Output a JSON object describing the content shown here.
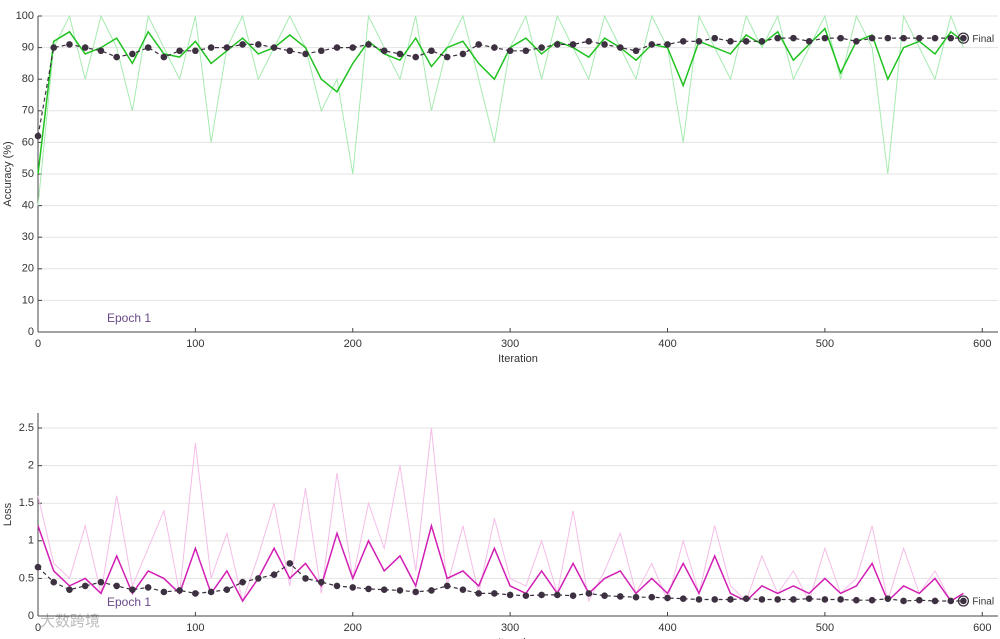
{
  "chart_data": [
    {
      "type": "line",
      "ylabel": "Accuracy (%)",
      "xlabel": "Iteration",
      "annotation": "Epoch 1",
      "final_label": "Final",
      "xlim": [
        0,
        610
      ],
      "ylim": [
        0,
        100
      ],
      "xticks": [
        0,
        100,
        200,
        300,
        400,
        500,
        600
      ],
      "yticks": [
        0,
        10,
        20,
        30,
        40,
        50,
        60,
        70,
        80,
        90,
        100
      ],
      "grid": true,
      "x": [
        0,
        10,
        20,
        30,
        40,
        50,
        60,
        70,
        80,
        90,
        100,
        110,
        120,
        130,
        140,
        150,
        160,
        170,
        180,
        190,
        200,
        210,
        220,
        230,
        240,
        250,
        260,
        270,
        280,
        290,
        300,
        310,
        320,
        330,
        340,
        350,
        360,
        370,
        380,
        390,
        400,
        410,
        420,
        430,
        440,
        450,
        460,
        470,
        480,
        490,
        500,
        510,
        520,
        530,
        540,
        550,
        560,
        570,
        580,
        588
      ],
      "series": [
        {
          "color": "#a6ebb0",
          "width": 1,
          "values": [
            40,
            90,
            100,
            80,
            100,
            90,
            70,
            100,
            90,
            80,
            100,
            60,
            90,
            100,
            80,
            90,
            100,
            90,
            70,
            80,
            50,
            100,
            90,
            80,
            100,
            70,
            90,
            100,
            80,
            60,
            90,
            100,
            80,
            100,
            90,
            80,
            100,
            90,
            80,
            100,
            90,
            60,
            100,
            90,
            80,
            100,
            90,
            100,
            80,
            90,
            100,
            80,
            100,
            90,
            50,
            100,
            90,
            80,
            100,
            90
          ]
        },
        {
          "color": "#1fc21f",
          "width": 1.5,
          "values": [
            50,
            92,
            95,
            88,
            90,
            93,
            85,
            95,
            88,
            87,
            92,
            85,
            89,
            93,
            88,
            90,
            94,
            90,
            80,
            76,
            85,
            92,
            88,
            86,
            93,
            84,
            90,
            92,
            85,
            80,
            90,
            93,
            88,
            92,
            90,
            87,
            93,
            90,
            86,
            91,
            90,
            78,
            92,
            90,
            88,
            94,
            91,
            95,
            86,
            91,
            96,
            82,
            92,
            94,
            80,
            90,
            92,
            88,
            95,
            92
          ]
        },
        {
          "color": "#3d3040",
          "width": 1.2,
          "line_style": "dashed",
          "marker": "circle",
          "values": [
            62,
            90,
            91,
            90,
            89,
            87,
            88,
            90,
            87,
            89,
            89,
            90,
            90,
            91,
            91,
            90,
            89,
            88,
            89,
            90,
            90,
            91,
            89,
            88,
            87,
            89,
            87,
            88,
            91,
            90,
            89,
            89,
            90,
            91,
            91,
            92,
            91,
            90,
            89,
            91,
            91,
            92,
            92,
            93,
            92,
            92,
            92,
            93,
            93,
            92,
            93,
            93,
            92,
            93,
            93,
            93,
            93,
            93,
            93,
            93
          ]
        }
      ]
    },
    {
      "type": "line",
      "ylabel": "Loss",
      "xlabel": "Iteration",
      "annotation": "Epoch 1",
      "final_label": "Final",
      "xlim": [
        0,
        610
      ],
      "ylim": [
        0,
        2.7
      ],
      "xticks": [
        0,
        100,
        200,
        300,
        400,
        500,
        600
      ],
      "yticks": [
        0,
        0.5,
        1,
        1.5,
        2,
        2.5
      ],
      "grid": true,
      "x": [
        0,
        10,
        20,
        30,
        40,
        50,
        60,
        70,
        80,
        90,
        100,
        110,
        120,
        130,
        140,
        150,
        160,
        170,
        180,
        190,
        200,
        210,
        220,
        230,
        240,
        250,
        260,
        270,
        280,
        290,
        300,
        310,
        320,
        330,
        340,
        350,
        360,
        370,
        380,
        390,
        400,
        410,
        420,
        430,
        440,
        450,
        460,
        470,
        480,
        490,
        500,
        510,
        520,
        530,
        540,
        550,
        560,
        570,
        580,
        588
      ],
      "series": [
        {
          "color": "#f5bde8",
          "width": 1,
          "values": [
            1.6,
            0.7,
            0.5,
            1.2,
            0.3,
            1.6,
            0.4,
            0.9,
            1.4,
            0.3,
            2.3,
            0.5,
            1.1,
            0.2,
            0.8,
            1.5,
            0.4,
            1.7,
            0.3,
            1.9,
            0.5,
            1.5,
            0.9,
            2.0,
            0.6,
            2.5,
            0.4,
            1.2,
            0.3,
            1.3,
            0.5,
            0.4,
            1.0,
            0.3,
            1.4,
            0.2,
            0.6,
            1.1,
            0.3,
            0.7,
            0.2,
            1.0,
            0.3,
            1.2,
            0.4,
            0.2,
            0.8,
            0.3,
            0.6,
            0.2,
            0.9,
            0.3,
            0.5,
            1.2,
            0.2,
            0.9,
            0.3,
            0.6,
            0.2,
            0.3
          ]
        },
        {
          "color": "#d21fb4",
          "width": 1.5,
          "values": [
            1.2,
            0.6,
            0.4,
            0.5,
            0.3,
            0.8,
            0.3,
            0.6,
            0.5,
            0.3,
            0.9,
            0.3,
            0.6,
            0.2,
            0.5,
            0.9,
            0.5,
            0.7,
            0.4,
            1.1,
            0.5,
            1.0,
            0.6,
            0.8,
            0.4,
            1.2,
            0.5,
            0.6,
            0.4,
            0.9,
            0.4,
            0.3,
            0.6,
            0.3,
            0.7,
            0.3,
            0.5,
            0.6,
            0.3,
            0.5,
            0.3,
            0.7,
            0.3,
            0.8,
            0.3,
            0.2,
            0.4,
            0.3,
            0.4,
            0.3,
            0.5,
            0.3,
            0.4,
            0.7,
            0.2,
            0.4,
            0.3,
            0.5,
            0.2,
            0.3
          ]
        },
        {
          "color": "#3d3040",
          "width": 1.2,
          "line_style": "dashed",
          "marker": "circle",
          "values": [
            0.65,
            0.45,
            0.35,
            0.4,
            0.45,
            0.4,
            0.35,
            0.38,
            0.32,
            0.34,
            0.3,
            0.32,
            0.35,
            0.45,
            0.5,
            0.55,
            0.7,
            0.5,
            0.45,
            0.4,
            0.38,
            0.36,
            0.35,
            0.34,
            0.32,
            0.34,
            0.4,
            0.35,
            0.3,
            0.3,
            0.28,
            0.27,
            0.28,
            0.28,
            0.27,
            0.3,
            0.27,
            0.26,
            0.25,
            0.25,
            0.24,
            0.23,
            0.22,
            0.22,
            0.22,
            0.23,
            0.22,
            0.22,
            0.22,
            0.23,
            0.22,
            0.22,
            0.21,
            0.21,
            0.23,
            0.2,
            0.21,
            0.2,
            0.2,
            0.2
          ]
        }
      ]
    }
  ],
  "watermark": "大数跨境"
}
